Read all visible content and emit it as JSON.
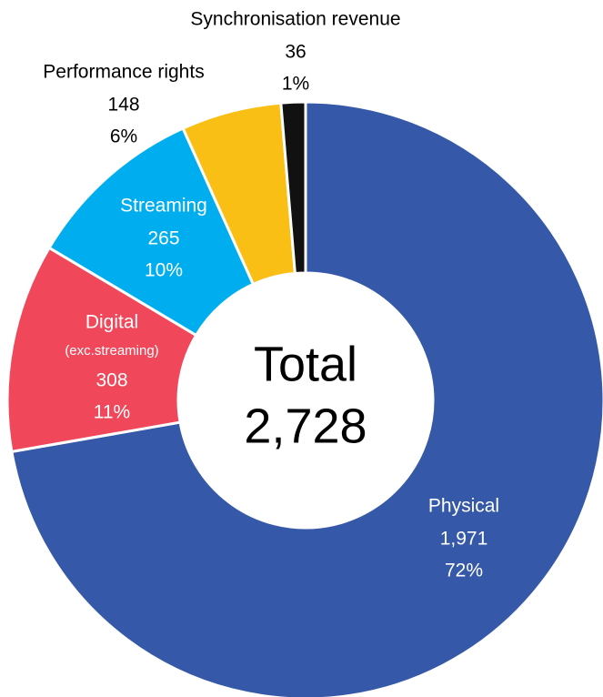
{
  "chart_data": {
    "type": "donut",
    "categories": [
      "Physical",
      "Digital",
      "Streaming",
      "Performance rights",
      "Synchronisation revenue"
    ],
    "category_notes": [
      null,
      "(exc.streaming)",
      null,
      null,
      null
    ],
    "values": [
      1971,
      308,
      265,
      148,
      36
    ],
    "value_labels": [
      "1,971",
      "308",
      "265",
      "148",
      "36"
    ],
    "percent_labels": [
      "72%",
      "11%",
      "10%",
      "6%",
      "1%"
    ],
    "colors": [
      "#3558a8",
      "#f0475a",
      "#00aeef",
      "#f9bf15",
      "#111111"
    ],
    "center_label": "Total",
    "total": {
      "value": 2728,
      "label": "2,728"
    }
  }
}
